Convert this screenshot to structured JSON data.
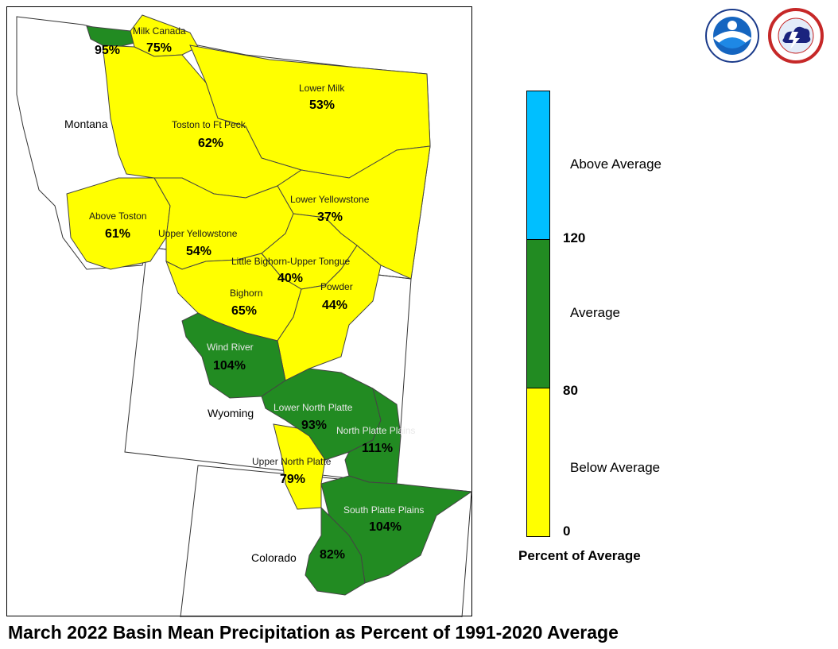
{
  "title": "March 2022 Basin Mean Precipitation as Percent of 1991-2020 Average",
  "colors": {
    "below_average": "#ffff00",
    "average": "#228b22",
    "above_average": "#00bfff",
    "boundary": "#333333"
  },
  "states": [
    "Montana",
    "Wyoming",
    "Colorado"
  ],
  "basins": [
    {
      "name": "",
      "percent": "95%",
      "category": "average"
    },
    {
      "name": "Milk Canada",
      "percent": "75%",
      "category": "below_average"
    },
    {
      "name": "Lower Milk",
      "percent": "53%",
      "category": "below_average"
    },
    {
      "name": "Toston to Ft Peck",
      "percent": "62%",
      "category": "below_average"
    },
    {
      "name": "Above Toston",
      "percent": "61%",
      "category": "below_average"
    },
    {
      "name": "Lower Yellowstone",
      "percent": "37%",
      "category": "below_average"
    },
    {
      "name": "Upper Yellowstone",
      "percent": "54%",
      "category": "below_average"
    },
    {
      "name": "Little Bighorn-Upper Tongue",
      "percent": "40%",
      "category": "below_average"
    },
    {
      "name": "Bighorn",
      "percent": "65%",
      "category": "below_average"
    },
    {
      "name": "Powder",
      "percent": "44%",
      "category": "below_average"
    },
    {
      "name": "Wind River",
      "percent": "104%",
      "category": "average"
    },
    {
      "name": "Lower North Platte",
      "percent": "93%",
      "category": "average"
    },
    {
      "name": "North Platte Plains",
      "percent": "111%",
      "category": "average"
    },
    {
      "name": "Upper North Platte",
      "percent": "79%",
      "category": "below_average"
    },
    {
      "name": "South Platte Plains",
      "percent": "104%",
      "category": "average"
    },
    {
      "name": "",
      "percent": "82%",
      "category": "average"
    }
  ],
  "legend": {
    "title": "Percent of Average",
    "categories": [
      "Above Average",
      "Average",
      "Below Average"
    ],
    "ticks": [
      "120",
      "80",
      "0"
    ]
  },
  "logos": [
    "noaa-logo",
    "national-weather-service-logo"
  ]
}
